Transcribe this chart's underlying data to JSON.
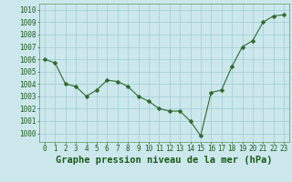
{
  "x": [
    0,
    1,
    2,
    3,
    4,
    5,
    6,
    7,
    8,
    9,
    10,
    11,
    12,
    13,
    14,
    15,
    16,
    17,
    18,
    19,
    20,
    21,
    22,
    23
  ],
  "y": [
    1006.0,
    1005.7,
    1004.0,
    1003.8,
    1003.0,
    1003.5,
    1004.3,
    1004.2,
    1003.8,
    1003.0,
    1002.6,
    1002.0,
    1001.8,
    1001.8,
    1001.0,
    999.8,
    1003.3,
    1003.5,
    1005.4,
    1007.0,
    1007.5,
    1009.0,
    1009.5,
    1009.6
  ],
  "line_color": "#2d6a2d",
  "marker": "D",
  "marker_size": 2.5,
  "bg_color": "#cce8ec",
  "grid_color": "#9ecdd4",
  "xlabel": "Graphe pression niveau de la mer (hPa)",
  "xlabel_color": "#1a5c1a",
  "tick_color": "#1a5c1a",
  "ylim": [
    999.3,
    1010.5
  ],
  "yticks": [
    1000,
    1001,
    1002,
    1003,
    1004,
    1005,
    1006,
    1007,
    1008,
    1009,
    1010
  ],
  "xlim": [
    -0.5,
    23.5
  ],
  "xticks": [
    0,
    1,
    2,
    3,
    4,
    5,
    6,
    7,
    8,
    9,
    10,
    11,
    12,
    13,
    14,
    15,
    16,
    17,
    18,
    19,
    20,
    21,
    22,
    23
  ],
  "tick_fontsize": 5.5,
  "xlabel_fontsize": 7.5
}
